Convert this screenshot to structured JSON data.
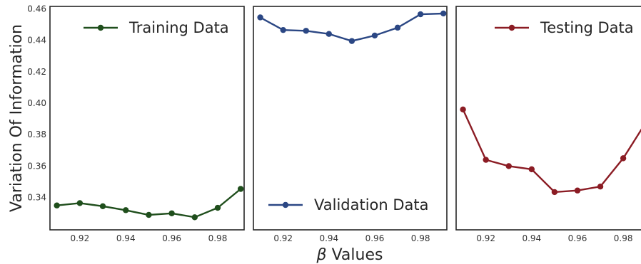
{
  "figure": {
    "ylabel": "Variation Of Information",
    "xlabel_symbol": "β",
    "xlabel_text": " Values"
  },
  "chart_data": [
    {
      "type": "line",
      "legend": "Training Data",
      "legend_position": "top-right",
      "color": "#1f4e1c",
      "x": [
        0.91,
        0.92,
        0.93,
        0.94,
        0.95,
        0.96,
        0.97,
        0.98,
        0.99
      ],
      "values": [
        0.335,
        0.3365,
        0.3345,
        0.332,
        0.329,
        0.33,
        0.3275,
        0.3335,
        0.3455
      ],
      "xlim": [
        0.907,
        0.9915
      ],
      "ylim": [
        0.3195,
        0.4615
      ],
      "xticks": [
        "0.92",
        "0.94",
        "0.96",
        "0.98"
      ],
      "yticks": [
        "0.34",
        "0.36",
        "0.38",
        "0.40",
        "0.42",
        "0.44",
        "0.46"
      ],
      "grid": false
    },
    {
      "type": "line",
      "legend": "Validation Data",
      "legend_position": "bottom-right",
      "color": "#2b4784",
      "x": [
        0.91,
        0.92,
        0.93,
        0.94,
        0.95,
        0.96,
        0.97,
        0.98,
        0.99
      ],
      "values": [
        0.4545,
        0.4465,
        0.446,
        0.444,
        0.4395,
        0.443,
        0.448,
        0.4565,
        0.457
      ],
      "xlim": [
        0.907,
        0.9915
      ],
      "ylim": [
        0.3195,
        0.4615
      ],
      "xticks": [
        "0.92",
        "0.94",
        "0.96",
        "0.98"
      ],
      "grid": false
    },
    {
      "type": "line",
      "legend": "Testing Data",
      "legend_position": "top-right",
      "color": "#8b1c24",
      "x": [
        0.91,
        0.92,
        0.93,
        0.94,
        0.95,
        0.96,
        0.97,
        0.98,
        0.99
      ],
      "values": [
        0.396,
        0.364,
        0.36,
        0.358,
        0.3435,
        0.3445,
        0.347,
        0.365,
        0.388
      ],
      "xlim": [
        0.907,
        0.9915
      ],
      "ylim": [
        0.3195,
        0.4615
      ],
      "xticks": [
        "0.92",
        "0.94",
        "0.96",
        "0.98"
      ],
      "grid": false
    }
  ]
}
